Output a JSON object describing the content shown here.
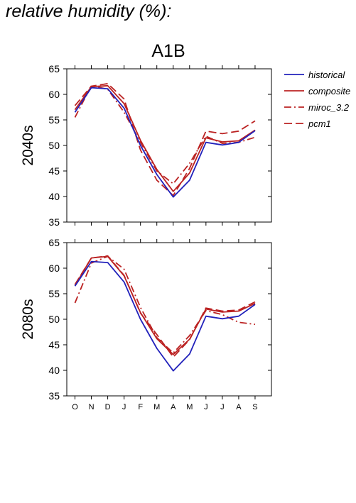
{
  "heading": "relative humidity (%):",
  "scenario_title": "A1B",
  "colors": {
    "historical": "#2222bb",
    "composite": "#bb2222",
    "miroc_3.2": "#bb2222",
    "pcm1": "#bb2222"
  },
  "legend": [
    {
      "name": "historical",
      "dash": "solid",
      "color": "#2222bb"
    },
    {
      "name": "composite",
      "dash": "solid",
      "color": "#bb2222"
    },
    {
      "name": "miroc_3.2",
      "dash": "dashdot",
      "color": "#bb2222"
    },
    {
      "name": "pcm1",
      "dash": "dashed",
      "color": "#bb2222"
    }
  ],
  "chart_data": [
    {
      "type": "line",
      "title": "A1B",
      "ylabel": "2040s",
      "categories": [
        "O",
        "N",
        "D",
        "J",
        "F",
        "M",
        "A",
        "M",
        "J",
        "J",
        "A",
        "S"
      ],
      "ylim": [
        35,
        65
      ],
      "yticks": [
        35,
        40,
        45,
        50,
        55,
        60,
        65
      ],
      "series": [
        {
          "name": "historical",
          "values": [
            56.5,
            61.3,
            61.1,
            57.3,
            50.0,
            44.3,
            39.9,
            43.2,
            50.6,
            50.1,
            50.6,
            52.9
          ]
        },
        {
          "name": "composite",
          "values": [
            57.0,
            61.5,
            61.7,
            58.2,
            51.0,
            45.3,
            41.0,
            44.6,
            51.5,
            50.7,
            50.9,
            53.0
          ]
        },
        {
          "name": "miroc_3.2",
          "values": [
            55.5,
            61.7,
            61.0,
            56.5,
            50.6,
            45.0,
            42.5,
            46.5,
            51.8,
            50.4,
            50.6,
            51.6
          ]
        },
        {
          "name": "pcm1",
          "values": [
            57.8,
            61.6,
            62.1,
            59.1,
            49.1,
            43.2,
            40.2,
            45.5,
            52.8,
            52.3,
            52.8,
            54.8
          ]
        }
      ]
    },
    {
      "type": "line",
      "title": "",
      "ylabel": "2080s",
      "categories": [
        "O",
        "N",
        "D",
        "J",
        "F",
        "M",
        "A",
        "M",
        "J",
        "J",
        "A",
        "S"
      ],
      "ylim": [
        35,
        65
      ],
      "yticks": [
        35,
        40,
        45,
        50,
        55,
        60,
        65
      ],
      "series": [
        {
          "name": "historical",
          "values": [
            56.5,
            61.3,
            61.1,
            57.3,
            50.0,
            44.3,
            39.9,
            43.2,
            50.6,
            50.1,
            50.6,
            52.9
          ]
        },
        {
          "name": "composite",
          "values": [
            56.6,
            62.0,
            62.3,
            58.5,
            51.3,
            46.2,
            43.1,
            46.1,
            52.0,
            51.4,
            51.6,
            53.1
          ]
        },
        {
          "name": "miroc_3.2",
          "values": [
            53.2,
            61.0,
            62.3,
            59.8,
            52.3,
            46.4,
            43.4,
            46.8,
            51.7,
            50.9,
            49.4,
            49.0
          ]
        },
        {
          "name": "pcm1",
          "values": [
            56.8,
            62.0,
            62.4,
            58.6,
            51.2,
            47.0,
            42.6,
            46.0,
            52.2,
            51.6,
            51.8,
            53.4
          ]
        }
      ]
    }
  ]
}
